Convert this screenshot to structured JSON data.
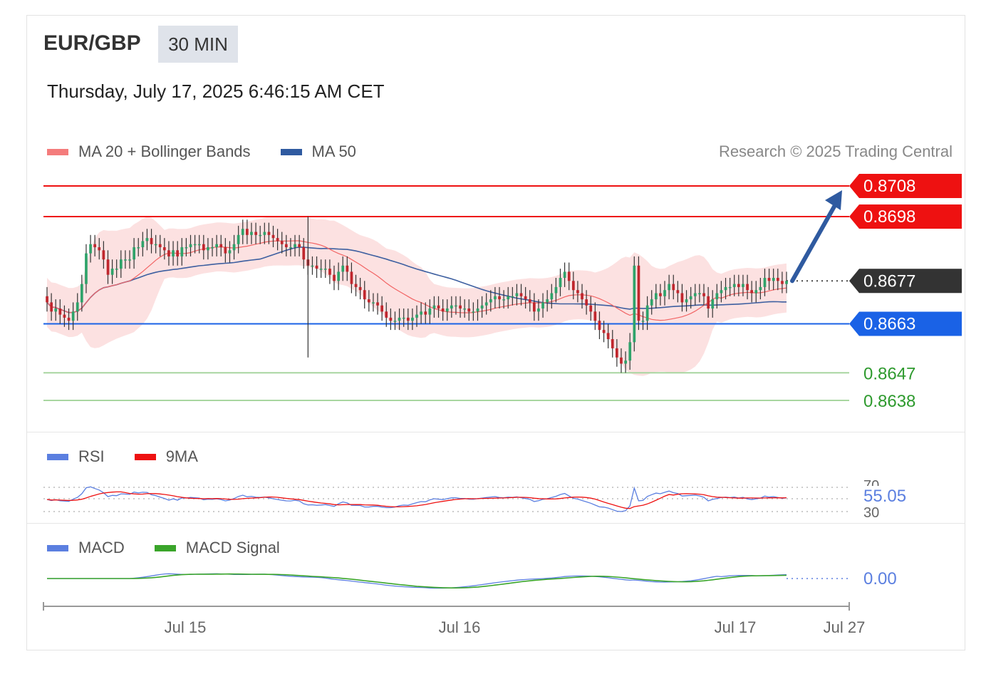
{
  "header": {
    "pair": "EUR/GBP",
    "period": "30 MIN",
    "datetime": "Thursday, July 17, 2025 6:46:15 AM CET"
  },
  "legend": {
    "ma20": "MA 20 + Bollinger Bands",
    "ma50": "MA 50",
    "credit": "Research © 2025 Trading Central"
  },
  "colors": {
    "resistance": "#ee1111",
    "support_blue": "#1a62e6",
    "support_green": "#2e9a2e",
    "current": "#333333",
    "ma20": "#f26464",
    "ma50": "#3d5fa0",
    "band": "#fbdcdc",
    "arrow": "#2f5aa0"
  },
  "rsi_panel": {
    "rsi_label": "RSI",
    "ma_label": "9MA",
    "value": "55.05",
    "level70": "70",
    "level30": "30"
  },
  "macd_panel": {
    "macd_label": "MACD",
    "signal_label": "MACD Signal",
    "value": "0.00"
  },
  "chart_data": {
    "type": "candlestick",
    "x_ticks": [
      "Jul 15",
      "Jul 16",
      "Jul 17",
      "Jul 27"
    ],
    "y_range": [
      0.863,
      0.8713
    ],
    "levels": [
      {
        "label": "0.8708",
        "value": 0.8708,
        "kind": "resistance"
      },
      {
        "label": "0.8698",
        "value": 0.8698,
        "kind": "resistance"
      },
      {
        "label": "0.8677",
        "value": 0.8677,
        "kind": "current"
      },
      {
        "label": "0.8663",
        "value": 0.8663,
        "kind": "support"
      },
      {
        "label": "0.8647",
        "value": 0.8647,
        "kind": "support-minor"
      },
      {
        "label": "0.8638",
        "value": 0.8638,
        "kind": "support-minor"
      }
    ],
    "close_series": [
      0.867,
      0.8667,
      0.8668,
      0.8666,
      0.8665,
      0.8664,
      0.8667,
      0.867,
      0.8676,
      0.8686,
      0.8689,
      0.8688,
      0.8687,
      0.8684,
      0.8679,
      0.8681,
      0.8681,
      0.8684,
      0.8684,
      0.8684,
      0.8688,
      0.8688,
      0.869,
      0.8691,
      0.8689,
      0.8689,
      0.8688,
      0.8687,
      0.8685,
      0.8687,
      0.8685,
      0.8688,
      0.8688,
      0.8689,
      0.8689,
      0.8689,
      0.8687,
      0.8688,
      0.8688,
      0.8689,
      0.8688,
      0.8686,
      0.8687,
      0.8689,
      0.8692,
      0.8694,
      0.8692,
      0.8693,
      0.8692,
      0.8692,
      0.8693,
      0.8692,
      0.8691,
      0.869,
      0.8689,
      0.8688,
      0.8688,
      0.8689,
      0.8688,
      0.8684,
      0.8682,
      0.8682,
      0.8681,
      0.8681,
      0.8681,
      0.8679,
      0.8677,
      0.868,
      0.8682,
      0.868,
      0.8676,
      0.8675,
      0.8674,
      0.8671,
      0.867,
      0.867,
      0.8669,
      0.8667,
      0.8665,
      0.8664,
      0.8664,
      0.8665,
      0.8665,
      0.8664,
      0.8665,
      0.8666,
      0.8667,
      0.8666,
      0.8668,
      0.8669,
      0.8668,
      0.8667,
      0.8668,
      0.8669,
      0.8669,
      0.8668,
      0.8668,
      0.8667,
      0.8667,
      0.8668,
      0.8669,
      0.867,
      0.8671,
      0.8672,
      0.8671,
      0.8671,
      0.8672,
      0.8672,
      0.8673,
      0.8672,
      0.8671,
      0.867,
      0.8667,
      0.8668,
      0.867,
      0.8671,
      0.8673,
      0.8675,
      0.8678,
      0.868,
      0.8677,
      0.8674,
      0.8673,
      0.8671,
      0.8669,
      0.8667,
      0.8664,
      0.8661,
      0.866,
      0.8658,
      0.8655,
      0.8652,
      0.865,
      0.8651,
      0.8657,
      0.8682,
      0.8664,
      0.8664,
      0.8669,
      0.8671,
      0.8673,
      0.8672,
      0.8674,
      0.8676,
      0.8674,
      0.8673,
      0.867,
      0.8671,
      0.8672,
      0.8673,
      0.8673,
      0.8672,
      0.8668,
      0.8671,
      0.8673,
      0.8674,
      0.8675,
      0.8675,
      0.8676,
      0.8675,
      0.8676,
      0.8674,
      0.8673,
      0.8674,
      0.8675,
      0.8678,
      0.8677,
      0.8678,
      0.8677,
      0.8676,
      0.8677
    ],
    "projection": {
      "from": 0.8677,
      "to": 0.8708
    },
    "rsi": {
      "value": 55.05,
      "levels": [
        70,
        30
      ]
    },
    "macd": {
      "value": 0.0
    }
  }
}
